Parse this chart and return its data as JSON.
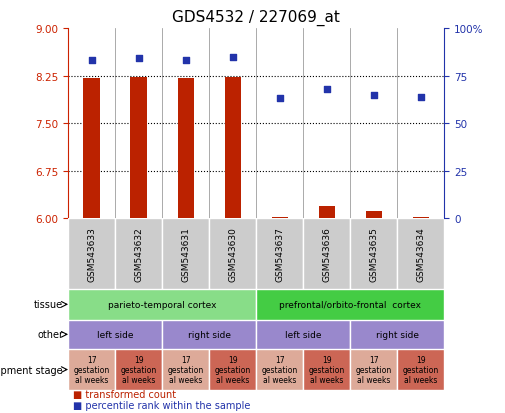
{
  "title": "GDS4532 / 227069_at",
  "samples": [
    "GSM543633",
    "GSM543632",
    "GSM543631",
    "GSM543630",
    "GSM543637",
    "GSM543636",
    "GSM543635",
    "GSM543634"
  ],
  "bar_values": [
    8.21,
    8.22,
    8.21,
    8.23,
    6.02,
    6.2,
    6.11,
    6.02
  ],
  "scatter_values": [
    83,
    84,
    83,
    85,
    63,
    68,
    65,
    64
  ],
  "ylim_left": [
    6,
    9
  ],
  "ylim_right": [
    0,
    100
  ],
  "yticks_left": [
    6,
    6.75,
    7.5,
    8.25,
    9
  ],
  "yticks_right": [
    0,
    25,
    50,
    75,
    100
  ],
  "bar_color": "#bb2200",
  "scatter_color": "#2233aa",
  "tissue_row": [
    {
      "label": "parieto-temporal cortex",
      "span": [
        0,
        4
      ],
      "color": "#88dd88"
    },
    {
      "label": "prefrontal/orbito-frontal  cortex",
      "span": [
        4,
        8
      ],
      "color": "#44cc44"
    }
  ],
  "other_row": [
    {
      "label": "left side",
      "span": [
        0,
        2
      ],
      "color": "#9988cc"
    },
    {
      "label": "right side",
      "span": [
        2,
        4
      ],
      "color": "#9988cc"
    },
    {
      "label": "left side",
      "span": [
        4,
        6
      ],
      "color": "#9988cc"
    },
    {
      "label": "right side",
      "span": [
        6,
        8
      ],
      "color": "#9988cc"
    }
  ],
  "dev_stage_row": [
    {
      "label": "17\ngestation\nal weeks",
      "span": [
        0,
        1
      ],
      "color": "#ddaa99"
    },
    {
      "label": "19\ngestation\nal weeks",
      "span": [
        1,
        2
      ],
      "color": "#cc6655"
    },
    {
      "label": "17\ngestation\nal weeks",
      "span": [
        2,
        3
      ],
      "color": "#ddaa99"
    },
    {
      "label": "19\ngestation\nal weeks",
      "span": [
        3,
        4
      ],
      "color": "#cc6655"
    },
    {
      "label": "17\ngestation\nal weeks",
      "span": [
        4,
        5
      ],
      "color": "#ddaa99"
    },
    {
      "label": "19\ngestation\nal weeks",
      "span": [
        5,
        6
      ],
      "color": "#cc6655"
    },
    {
      "label": "17\ngestation\nal weeks",
      "span": [
        6,
        7
      ],
      "color": "#ddaa99"
    },
    {
      "label": "19\ngestation\nal weeks",
      "span": [
        7,
        8
      ],
      "color": "#cc6655"
    }
  ],
  "row_labels": [
    "tissue",
    "other",
    "development stage"
  ],
  "legend_bar_label": "transformed count",
  "legend_scatter_label": "percentile rank within the sample",
  "hlines": [
    6.75,
    7.5,
    8.25
  ],
  "axis_color_left": "#cc2200",
  "axis_color_right": "#2233aa",
  "sample_box_color": "#cccccc",
  "separator_color": "#888888"
}
